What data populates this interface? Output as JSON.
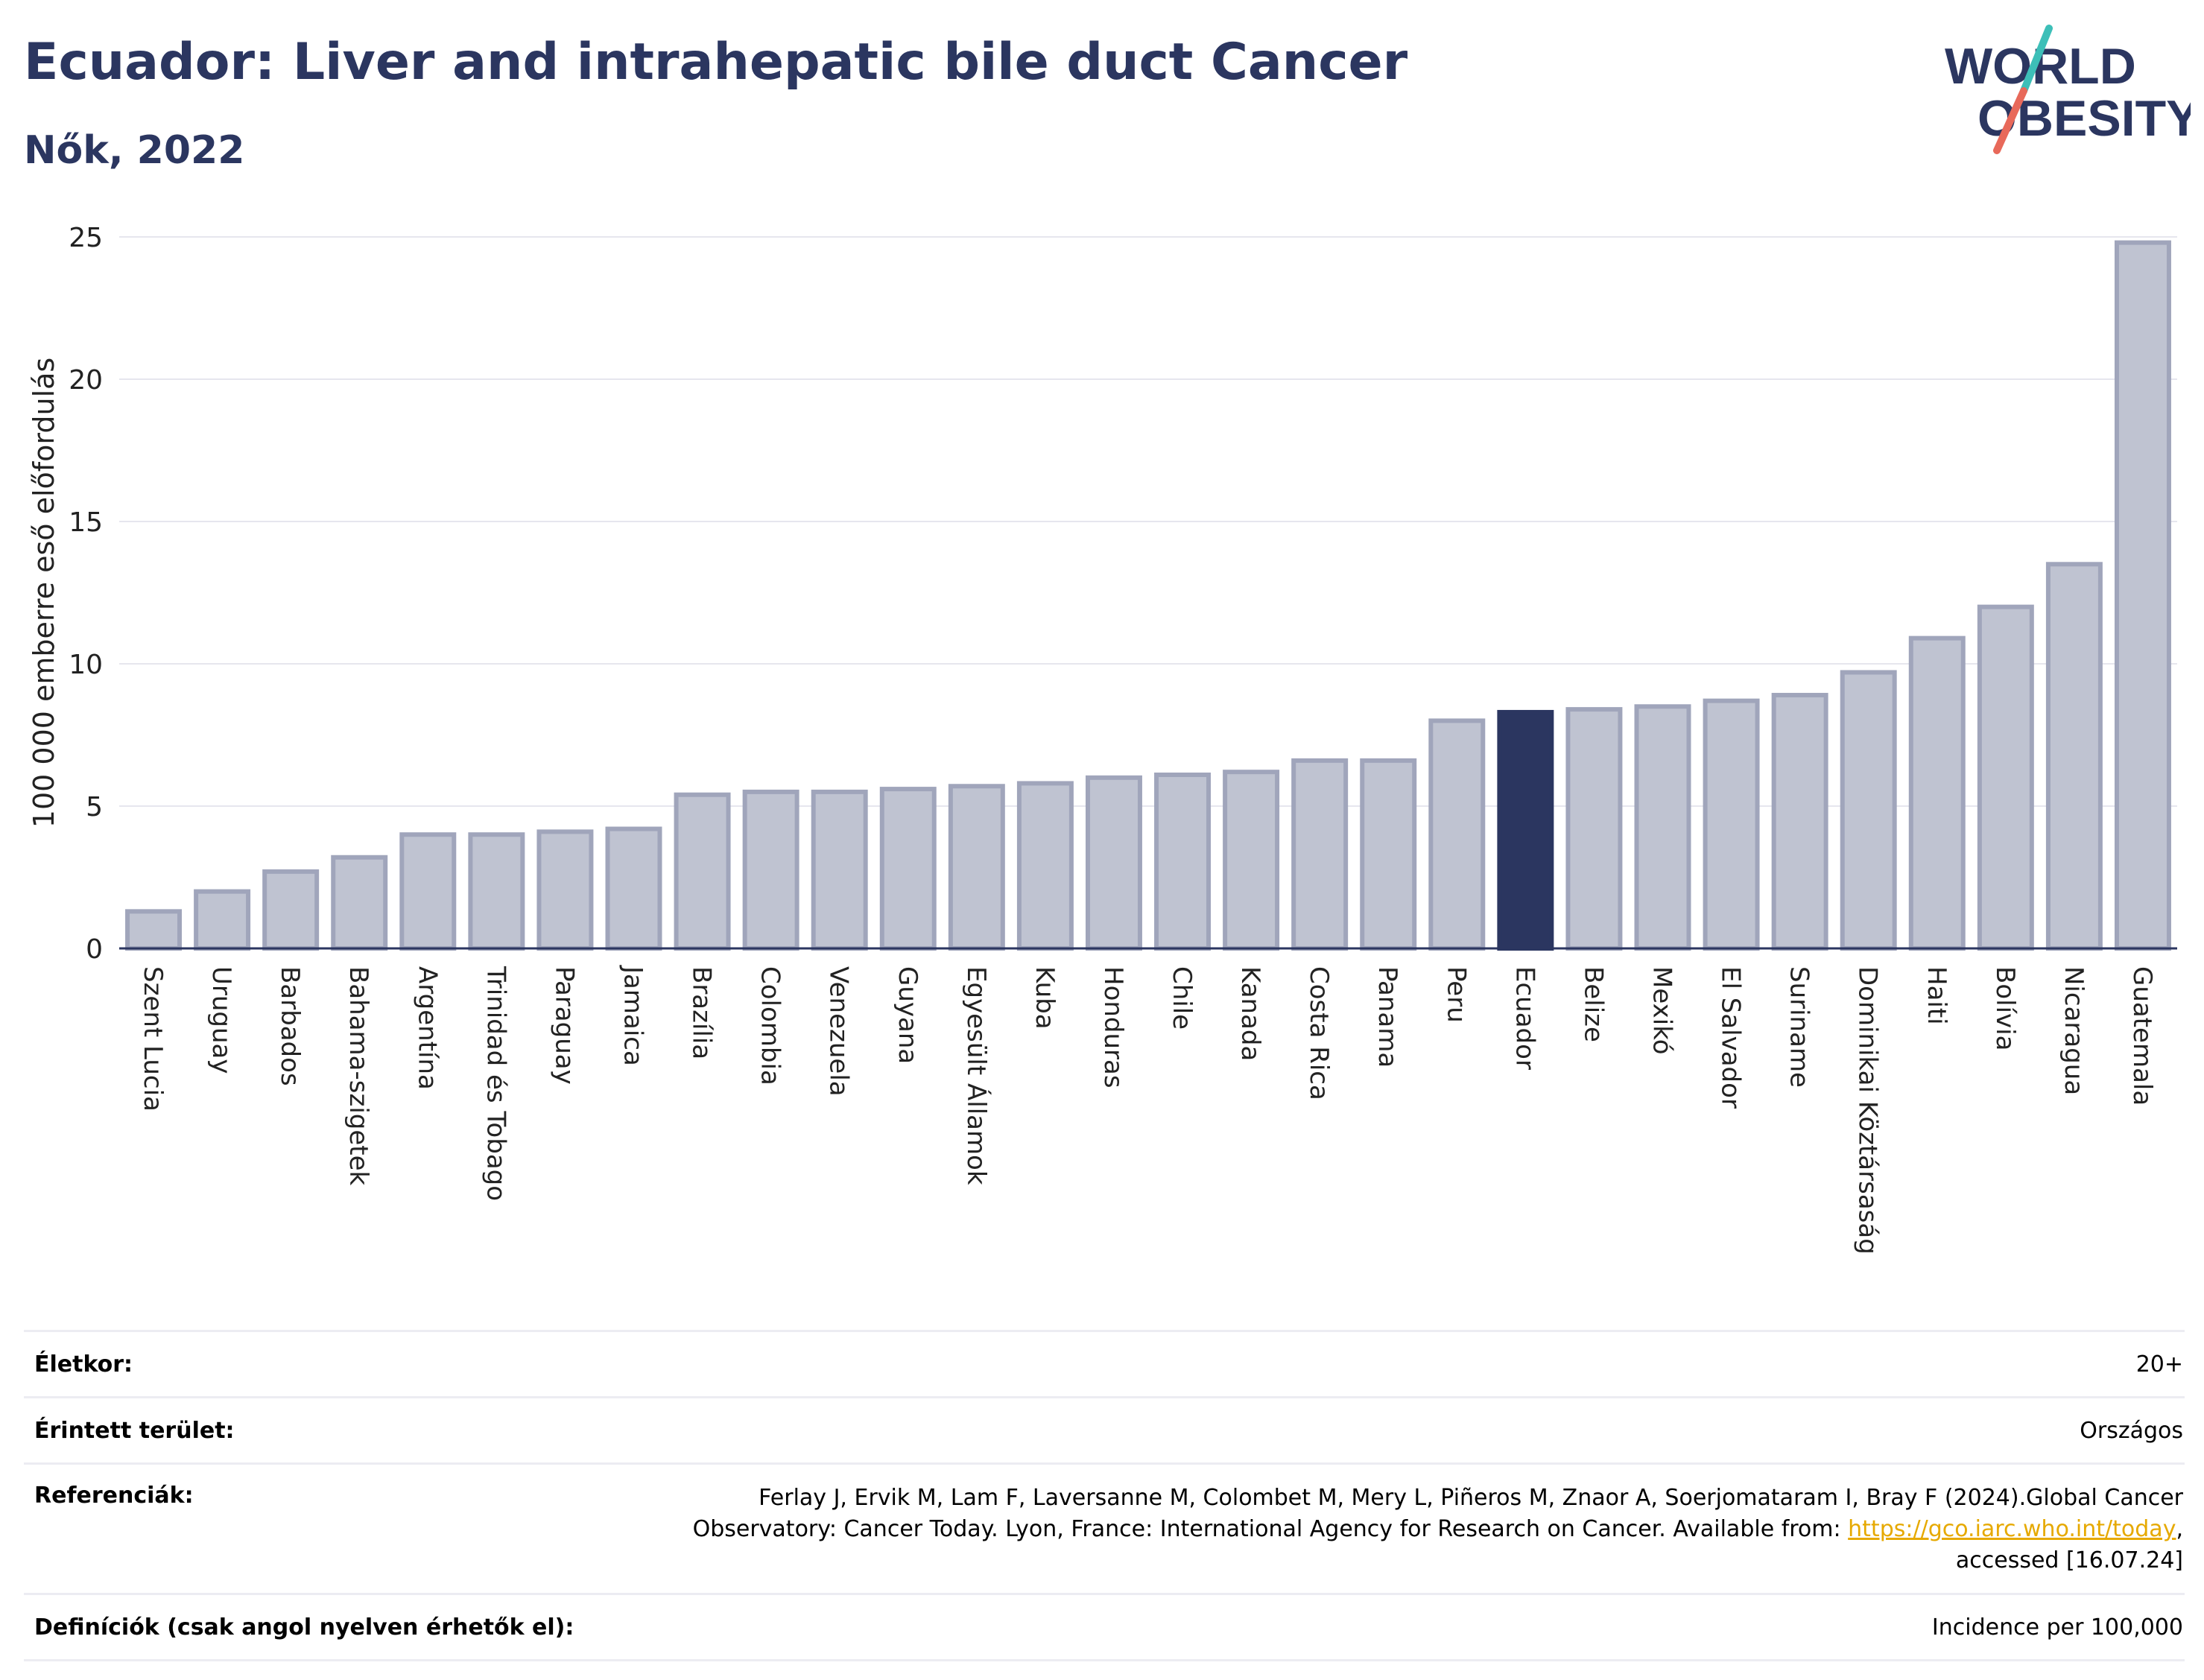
{
  "header": {
    "title": "Ecuador: Liver and intrahepatic bile duct Cancer",
    "subtitle": "Nők, 2022"
  },
  "logo": {
    "line1": "WORLD",
    "line2": "OBESITY",
    "colors": {
      "text": "#2b3660",
      "slash_top": "#3dbfb8",
      "slash_bottom": "#e8695a"
    }
  },
  "chart_data": {
    "type": "bar",
    "ylabel": "100 000 emberre eső előfordulás",
    "xlabel": "",
    "ylim": [
      0,
      25
    ],
    "yticks": [
      0,
      5,
      10,
      15,
      20,
      25
    ],
    "grid": true,
    "highlight": "Ecuador",
    "colors": {
      "bar": "#bfc3d1",
      "bar_edge": "#a0a5bb",
      "highlight": "#2b3660",
      "grid": "#e6e6ee"
    },
    "categories": [
      "Szent Lucia",
      "Uruguay",
      "Barbados",
      "Bahama-szigetek",
      "Argentína",
      "Trinidad és Tobago",
      "Paraguay",
      "Jamaica",
      "Brazília",
      "Colombia",
      "Venezuela",
      "Guyana",
      "Egyesült Államok",
      "Kuba",
      "Honduras",
      "Chile",
      "Kanada",
      "Costa Rica",
      "Panama",
      "Peru",
      "Ecuador",
      "Belize",
      "Mexikó",
      "El Salvador",
      "Suriname",
      "Dominikai Köztársaság",
      "Haiti",
      "Bolívia",
      "Nicaragua",
      "Guatemala"
    ],
    "values": [
      1.3,
      2.0,
      2.7,
      3.2,
      4.0,
      4.0,
      4.1,
      4.2,
      5.4,
      5.5,
      5.5,
      5.6,
      5.7,
      5.8,
      6.0,
      6.1,
      6.2,
      6.6,
      6.6,
      8.0,
      8.3,
      8.4,
      8.5,
      8.7,
      8.9,
      9.7,
      10.9,
      12.0,
      13.5,
      24.8
    ]
  },
  "info": {
    "rows": [
      {
        "label": "Életkor:",
        "value": "20+"
      },
      {
        "label": "Érintett terület:",
        "value": "Országos"
      },
      {
        "label": "Referenciák:",
        "value_line1": "Ferlay J, Ervik M, Lam F, Laversanne M, Colombet M, Mery L, Piñeros M, Znaor A, Soerjomataram I, Bray F (2024).Global Cancer",
        "value_line2_pre": "Observatory: Cancer Today. Lyon, France: International Agency for Research on Cancer. Available from: ",
        "link": "https://gco.iarc.who.int/today",
        "value_line2_post": ",",
        "value_line3": "accessed [16.07.24]"
      },
      {
        "label": "Definíciók (csak angol nyelven érhetők el):",
        "value": "Incidence per 100,000"
      }
    ]
  }
}
